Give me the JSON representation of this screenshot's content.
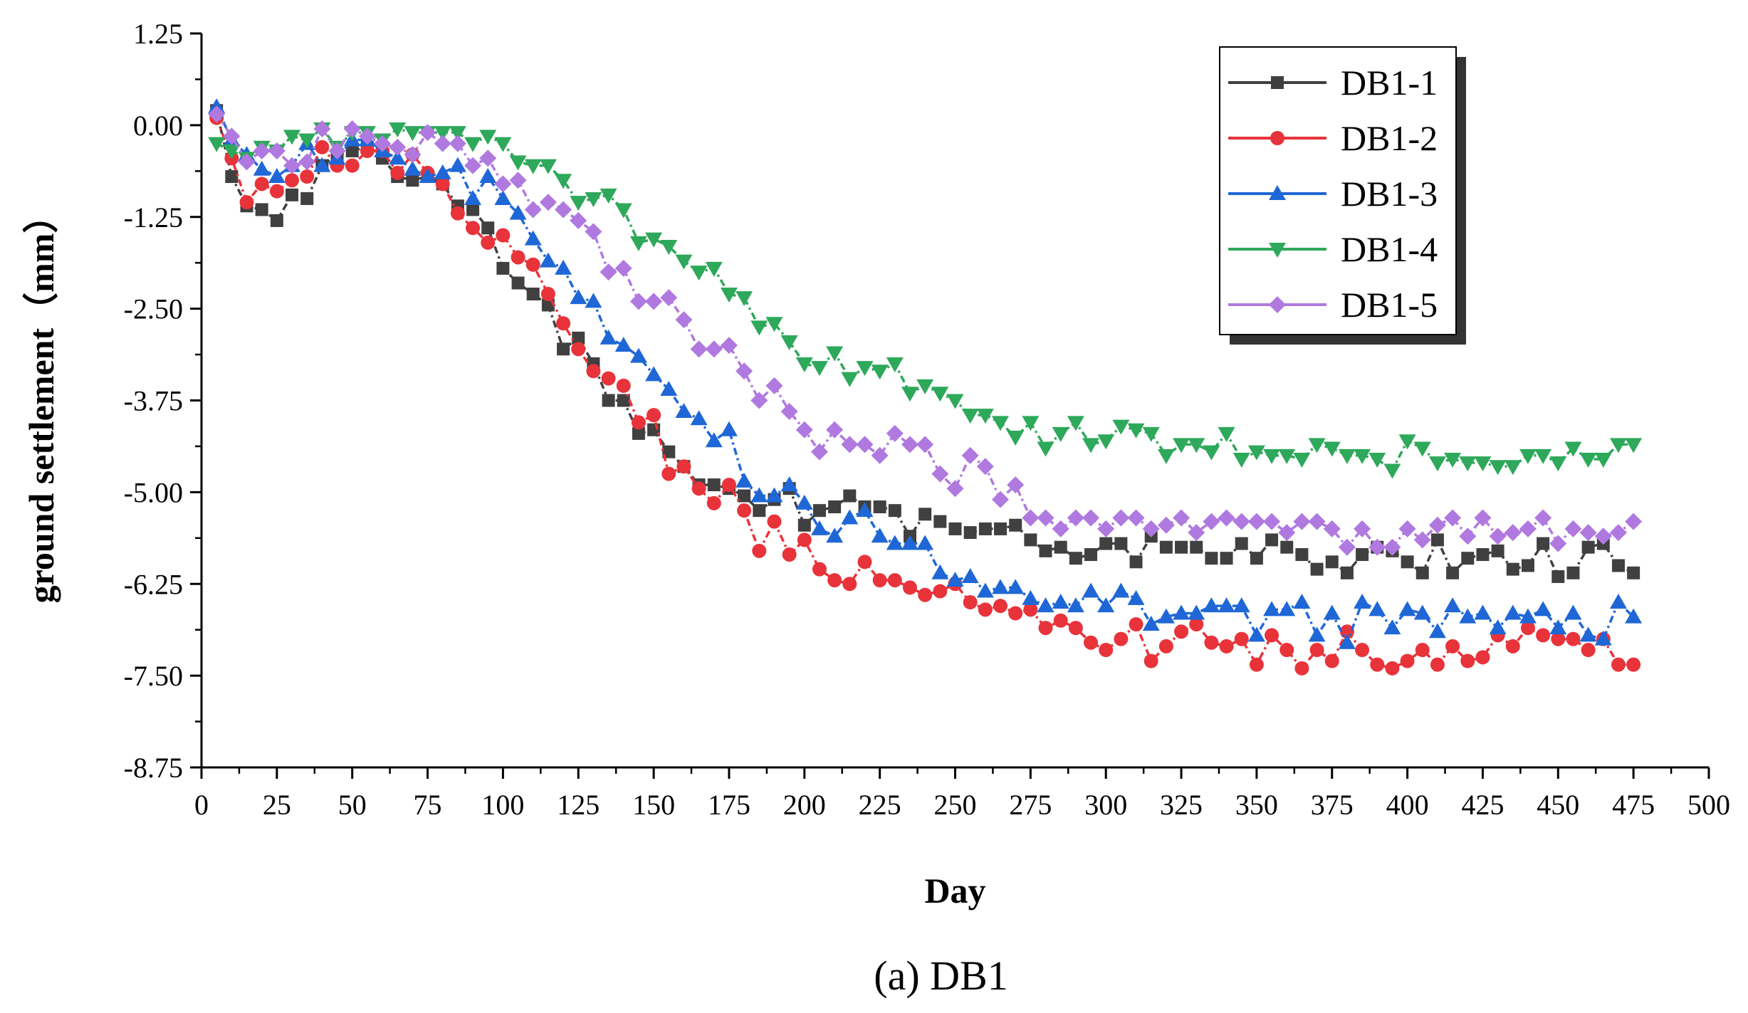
{
  "chart_data": {
    "type": "line",
    "title": "",
    "caption": "(a) DB1",
    "xlabel": "Day",
    "ylabel": "ground settlement（mm）",
    "xlim": [
      0,
      500
    ],
    "ylim": [
      -8.75,
      1.25
    ],
    "xticks": [
      0,
      25,
      50,
      75,
      100,
      125,
      150,
      175,
      200,
      225,
      250,
      275,
      300,
      325,
      350,
      375,
      400,
      425,
      450,
      475,
      500
    ],
    "yticks": [
      1.25,
      0.0,
      -1.25,
      -2.5,
      -3.75,
      -5.0,
      -6.25,
      -7.5,
      -8.75
    ],
    "ytick_labels": [
      "1.25",
      "0.00",
      "-1.25",
      "-2.50",
      "-3.75",
      "-5.00",
      "-6.25",
      "-7.50",
      "-8.75"
    ],
    "grid": false,
    "legend_position": "top-right",
    "x": [
      5,
      10,
      15,
      20,
      25,
      30,
      35,
      40,
      45,
      50,
      55,
      60,
      65,
      70,
      75,
      80,
      85,
      90,
      95,
      100,
      105,
      110,
      115,
      120,
      125,
      130,
      135,
      140,
      145,
      150,
      155,
      160,
      165,
      170,
      175,
      180,
      185,
      190,
      195,
      200,
      205,
      210,
      215,
      220,
      225,
      230,
      235,
      240,
      245,
      250,
      255,
      260,
      265,
      270,
      275,
      280,
      285,
      290,
      295,
      300,
      305,
      310,
      315,
      320,
      325,
      330,
      335,
      340,
      345,
      350,
      355,
      360,
      365,
      370,
      375,
      380,
      385,
      390,
      395,
      400,
      405,
      410,
      415,
      420,
      425,
      430,
      435,
      440,
      445,
      450,
      455,
      460,
      465,
      470,
      475
    ],
    "series": [
      {
        "name": "DB1-1",
        "color": "#404040",
        "marker": "square",
        "values": [
          0.2,
          -0.7,
          -1.1,
          -1.15,
          -1.3,
          -0.95,
          -1.0,
          -0.55,
          -0.4,
          -0.35,
          -0.3,
          -0.45,
          -0.7,
          -0.75,
          -0.7,
          -0.8,
          -1.1,
          -1.15,
          -1.4,
          -1.95,
          -2.15,
          -2.3,
          -2.45,
          -3.05,
          -2.9,
          -3.25,
          -3.75,
          -3.75,
          -4.2,
          -4.15,
          -4.45,
          -4.65,
          -4.9,
          -4.9,
          -4.95,
          -5.05,
          -5.25,
          -5.1,
          -4.95,
          -5.45,
          -5.25,
          -5.2,
          -5.05,
          -5.2,
          -5.2,
          -5.25,
          -5.6,
          -5.3,
          -5.4,
          -5.5,
          -5.55,
          -5.5,
          -5.5,
          -5.45,
          -5.65,
          -5.8,
          -5.75,
          -5.9,
          -5.85,
          -5.7,
          -5.7,
          -5.95,
          -5.6,
          -5.75,
          -5.75,
          -5.75,
          -5.9,
          -5.9,
          -5.7,
          -5.9,
          -5.65,
          -5.75,
          -5.85,
          -6.05,
          -5.95,
          -6.1,
          -5.85,
          -5.75,
          -5.8,
          -5.95,
          -6.1,
          -5.65,
          -6.1,
          -5.9,
          -5.85,
          -5.8,
          -6.05,
          -6.0,
          -5.7,
          -6.15,
          -6.1,
          -5.75,
          -5.7,
          -6.0,
          -6.1
        ]
      },
      {
        "name": "DB1-2",
        "color": "#e8333a",
        "marker": "circle",
        "values": [
          0.1,
          -0.45,
          -1.05,
          -0.8,
          -0.9,
          -0.75,
          -0.7,
          -0.3,
          -0.55,
          -0.55,
          -0.35,
          -0.35,
          -0.65,
          -0.4,
          -0.65,
          -0.8,
          -1.2,
          -1.4,
          -1.6,
          -1.5,
          -1.8,
          -1.9,
          -2.3,
          -2.7,
          -3.05,
          -3.35,
          -3.45,
          -3.55,
          -4.05,
          -3.95,
          -4.75,
          -4.65,
          -4.95,
          -5.15,
          -4.9,
          -5.25,
          -5.8,
          -5.4,
          -5.85,
          -5.65,
          -6.05,
          -6.2,
          -6.25,
          -5.95,
          -6.2,
          -6.2,
          -6.3,
          -6.4,
          -6.35,
          -6.25,
          -6.5,
          -6.6,
          -6.55,
          -6.65,
          -6.6,
          -6.85,
          -6.75,
          -6.85,
          -7.05,
          -7.15,
          -7.0,
          -6.8,
          -7.3,
          -7.1,
          -6.9,
          -6.8,
          -7.05,
          -7.1,
          -7.0,
          -7.35,
          -6.95,
          -7.15,
          -7.4,
          -7.15,
          -7.3,
          -6.9,
          -7.15,
          -7.35,
          -7.4,
          -7.3,
          -7.15,
          -7.35,
          -7.1,
          -7.3,
          -7.25,
          -6.95,
          -7.1,
          -6.85,
          -6.95,
          -7.0,
          -7.0,
          -7.15,
          -7.0,
          -7.35,
          -7.35
        ]
      },
      {
        "name": "DB1-3",
        "color": "#1f67d6",
        "marker": "triangle-up",
        "values": [
          0.25,
          -0.2,
          -0.4,
          -0.6,
          -0.7,
          -0.55,
          -0.25,
          -0.55,
          -0.45,
          -0.2,
          -0.2,
          -0.35,
          -0.45,
          -0.6,
          -0.7,
          -0.65,
          -0.55,
          -1.0,
          -0.7,
          -1.0,
          -1.2,
          -1.55,
          -1.85,
          -1.95,
          -2.35,
          -2.4,
          -2.9,
          -3.0,
          -3.15,
          -3.4,
          -3.6,
          -3.9,
          -4.0,
          -4.3,
          -4.15,
          -4.85,
          -5.05,
          -5.05,
          -4.9,
          -5.15,
          -5.5,
          -5.6,
          -5.35,
          -5.25,
          -5.6,
          -5.7,
          -5.7,
          -5.7,
          -6.1,
          -6.2,
          -6.15,
          -6.35,
          -6.3,
          -6.3,
          -6.45,
          -6.55,
          -6.5,
          -6.55,
          -6.35,
          -6.55,
          -6.35,
          -6.45,
          -6.8,
          -6.7,
          -6.65,
          -6.65,
          -6.55,
          -6.55,
          -6.55,
          -6.95,
          -6.6,
          -6.6,
          -6.5,
          -6.95,
          -6.65,
          -7.05,
          -6.5,
          -6.6,
          -6.85,
          -6.6,
          -6.65,
          -6.9,
          -6.55,
          -6.7,
          -6.65,
          -6.85,
          -6.65,
          -6.7,
          -6.6,
          -6.85,
          -6.65,
          -6.95,
          -7.0,
          -6.5,
          -6.7
        ]
      },
      {
        "name": "DB1-4",
        "color": "#2ea85a",
        "marker": "triangle-down",
        "values": [
          -0.25,
          -0.35,
          -0.45,
          -0.3,
          -0.35,
          -0.15,
          -0.2,
          -0.05,
          -0.3,
          -0.1,
          -0.1,
          -0.2,
          -0.05,
          -0.1,
          -0.1,
          -0.1,
          -0.1,
          -0.25,
          -0.15,
          -0.25,
          -0.5,
          -0.55,
          -0.55,
          -0.75,
          -1.05,
          -1.0,
          -0.95,
          -1.15,
          -1.6,
          -1.55,
          -1.65,
          -1.85,
          -2.0,
          -1.95,
          -2.3,
          -2.35,
          -2.75,
          -2.7,
          -2.95,
          -3.25,
          -3.3,
          -3.1,
          -3.45,
          -3.3,
          -3.35,
          -3.25,
          -3.65,
          -3.55,
          -3.65,
          -3.75,
          -3.95,
          -3.95,
          -4.05,
          -4.25,
          -4.05,
          -4.4,
          -4.2,
          -4.05,
          -4.35,
          -4.3,
          -4.1,
          -4.15,
          -4.2,
          -4.5,
          -4.35,
          -4.35,
          -4.45,
          -4.2,
          -4.55,
          -4.45,
          -4.5,
          -4.5,
          -4.55,
          -4.35,
          -4.4,
          -4.5,
          -4.5,
          -4.55,
          -4.7,
          -4.3,
          -4.4,
          -4.6,
          -4.55,
          -4.6,
          -4.6,
          -4.65,
          -4.65,
          -4.5,
          -4.5,
          -4.6,
          -4.4,
          -4.55,
          -4.55,
          -4.35,
          -4.35
        ]
      },
      {
        "name": "DB1-5",
        "color": "#b079e0",
        "marker": "diamond",
        "values": [
          0.15,
          -0.15,
          -0.5,
          -0.35,
          -0.35,
          -0.55,
          -0.5,
          -0.05,
          -0.35,
          -0.05,
          -0.15,
          -0.25,
          -0.3,
          -0.4,
          -0.1,
          -0.25,
          -0.25,
          -0.55,
          -0.45,
          -0.8,
          -0.75,
          -1.15,
          -1.05,
          -1.15,
          -1.3,
          -1.45,
          -2.0,
          -1.95,
          -2.4,
          -2.4,
          -2.35,
          -2.65,
          -3.05,
          -3.05,
          -3.0,
          -3.35,
          -3.75,
          -3.55,
          -3.9,
          -4.15,
          -4.45,
          -4.15,
          -4.35,
          -4.35,
          -4.5,
          -4.2,
          -4.35,
          -4.35,
          -4.75,
          -4.95,
          -4.5,
          -4.65,
          -5.1,
          -4.9,
          -5.35,
          -5.35,
          -5.5,
          -5.35,
          -5.35,
          -5.5,
          -5.35,
          -5.35,
          -5.5,
          -5.45,
          -5.35,
          -5.55,
          -5.4,
          -5.35,
          -5.4,
          -5.4,
          -5.4,
          -5.55,
          -5.4,
          -5.4,
          -5.5,
          -5.75,
          -5.5,
          -5.75,
          -5.75,
          -5.5,
          -5.65,
          -5.45,
          -5.35,
          -5.6,
          -5.35,
          -5.6,
          -5.55,
          -5.5,
          -5.35,
          -5.7,
          -5.5,
          -5.55,
          -5.6,
          -5.55,
          -5.4
        ]
      }
    ]
  }
}
